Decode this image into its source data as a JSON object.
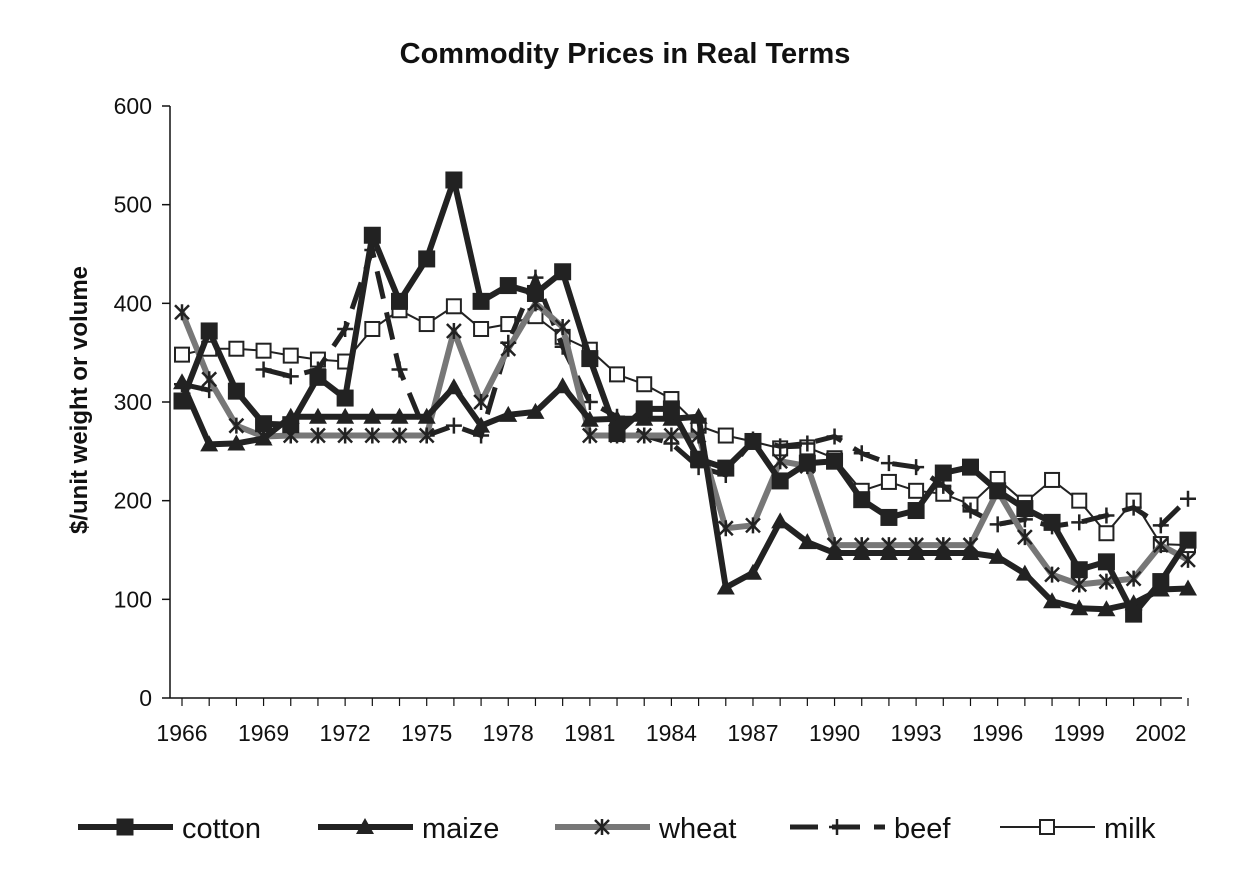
{
  "chart_data": {
    "type": "line",
    "title": "Commodity Prices in Real Terms",
    "ylabel": "$/unit weight or volume",
    "xlabel": "",
    "ylim": [
      0,
      600
    ],
    "yticks": [
      0,
      100,
      200,
      300,
      400,
      500,
      600
    ],
    "xlim": [
      1966,
      2003
    ],
    "xticks": [
      "1966",
      "1969",
      "1972",
      "1975",
      "1978",
      "1981",
      "1984",
      "1987",
      "1990",
      "1993",
      "1996",
      "1999",
      "2002"
    ],
    "grid": false,
    "legend_position": "bottom",
    "x": [
      1966,
      1967,
      1968,
      1969,
      1970,
      1971,
      1972,
      1973,
      1974,
      1975,
      1976,
      1977,
      1978,
      1979,
      1980,
      1981,
      1982,
      1983,
      1984,
      1985,
      1986,
      1987,
      1988,
      1989,
      1990,
      1991,
      1992,
      1993,
      1994,
      1995,
      1996,
      1997,
      1998,
      1999,
      2000,
      2001,
      2002,
      2003
    ],
    "series": [
      {
        "name": "cotton",
        "color": "#222222",
        "marker": "square-filled",
        "style": "thick",
        "values": [
          301,
          372,
          311,
          278,
          277,
          325,
          304,
          469,
          402,
          445,
          525,
          402,
          418,
          410,
          432,
          344,
          268,
          293,
          293,
          242,
          233,
          260,
          220,
          238,
          240,
          201,
          183,
          190,
          228,
          234,
          210,
          192,
          178,
          130,
          138,
          85,
          118,
          160
        ]
      },
      {
        "name": "maize",
        "color": "#222222",
        "marker": "triangle-filled",
        "style": "thick",
        "values": [
          320,
          257,
          258,
          263,
          285,
          285,
          285,
          285,
          285,
          285,
          315,
          276,
          287,
          290,
          316,
          282,
          283,
          283,
          283,
          285,
          112,
          127,
          179,
          158,
          147,
          147,
          147,
          147,
          147,
          147,
          143,
          126,
          98,
          91,
          90,
          96,
          110,
          111
        ]
      },
      {
        "name": "wheat",
        "color": "#777777",
        "marker": "asterisk",
        "style": "thick",
        "values": [
          391,
          323,
          276,
          265,
          266,
          266,
          266,
          266,
          266,
          266,
          372,
          300,
          354,
          400,
          376,
          266,
          266,
          266,
          266,
          266,
          172,
          175,
          240,
          235,
          155,
          155,
          155,
          155,
          155,
          155,
          210,
          163,
          125,
          115,
          118,
          121,
          155,
          140
        ]
      },
      {
        "name": "beef",
        "color": "#222222",
        "marker": "plus",
        "style": "dashed",
        "values": [
          318,
          312,
          null,
          333,
          326,
          333,
          374,
          454,
          333,
          266,
          276,
          266,
          360,
          426,
          356,
          300,
          285,
          266,
          258,
          234,
          226,
          262,
          255,
          258,
          265,
          248,
          238,
          234,
          215,
          190,
          176,
          181,
          174,
          178,
          185,
          193,
          175,
          202
        ]
      },
      {
        "name": "milk",
        "color": "#222222",
        "marker": "square-open",
        "style": "thin",
        "values": [
          348,
          354,
          354,
          352,
          347,
          343,
          341,
          374,
          393,
          379,
          397,
          374,
          379,
          387,
          366,
          353,
          328,
          318,
          303,
          276,
          266,
          260,
          253,
          254,
          243,
          210,
          219,
          210,
          207,
          196,
          222,
          198,
          221,
          200,
          167,
          200,
          156,
          155
        ]
      }
    ]
  }
}
